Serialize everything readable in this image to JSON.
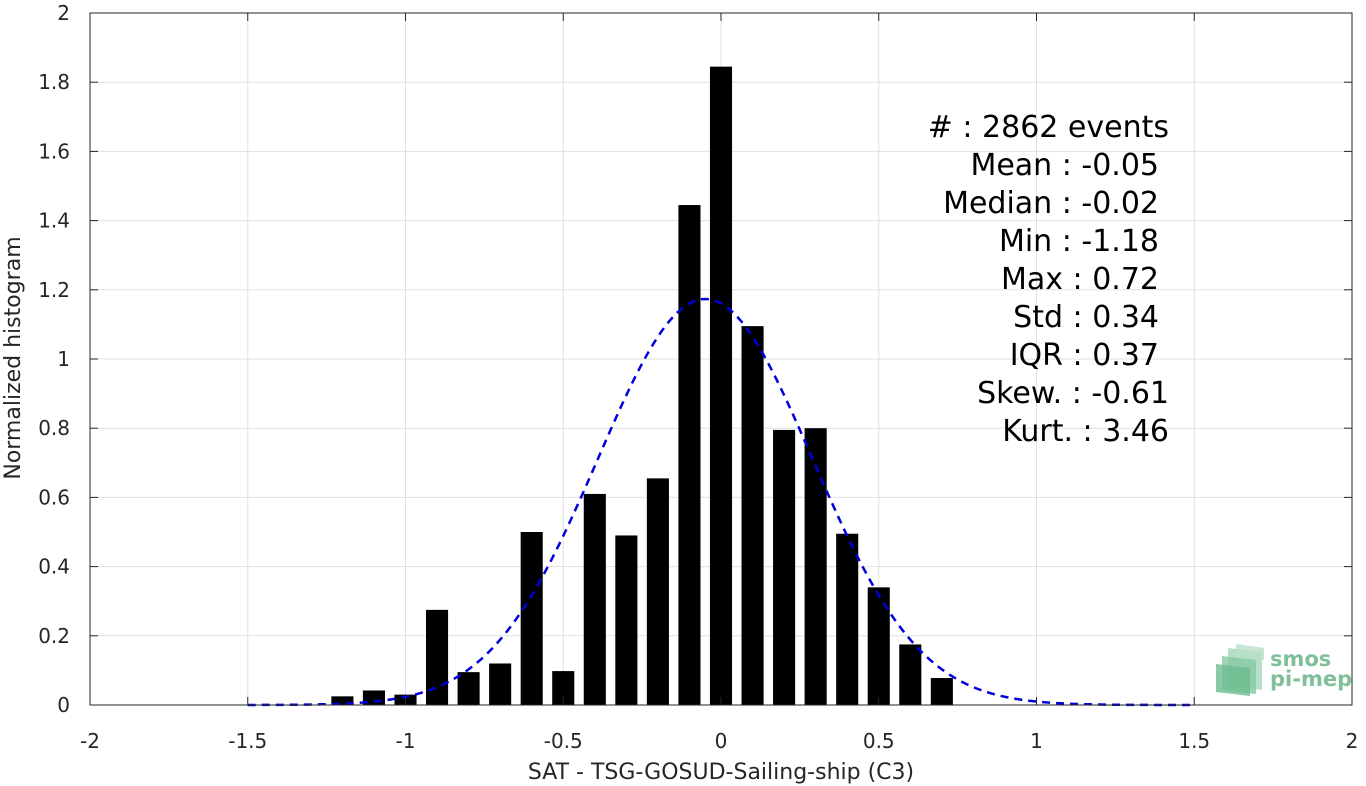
{
  "chart_data": {
    "type": "bar",
    "xlabel": "SAT - TSG-GOSUD-Sailing-ship (C3)",
    "ylabel": "Normalized histogram",
    "xlim": [
      -2,
      2
    ],
    "ylim": [
      0,
      2
    ],
    "grid": true,
    "xticks": [
      -2,
      -1.5,
      -1,
      -0.5,
      0,
      0.5,
      1,
      1.5,
      2
    ],
    "xtick_labels": [
      "-2",
      "-1.5",
      "-1",
      "-0.5",
      "0",
      "0.5",
      "1",
      "1.5",
      "2"
    ],
    "yticks": [
      0,
      0.2,
      0.4,
      0.6,
      0.8,
      1,
      1.2,
      1.4,
      1.6,
      1.8,
      2
    ],
    "ytick_labels": [
      "0",
      "0.2",
      "0.4",
      "0.6",
      "0.8",
      "1",
      "1.2",
      "1.4",
      "1.6",
      "1.8",
      "2"
    ],
    "bar_width": 0.07,
    "bars": {
      "x": [
        -1.2,
        -1.1,
        -1.0,
        -0.9,
        -0.8,
        -0.7,
        -0.6,
        -0.5,
        -0.4,
        -0.3,
        -0.2,
        -0.1,
        0.0,
        0.1,
        0.2,
        0.3,
        0.4,
        0.5,
        0.6,
        0.7
      ],
      "values": [
        0.025,
        0.042,
        0.03,
        0.275,
        0.095,
        0.12,
        0.5,
        0.098,
        0.61,
        0.49,
        0.655,
        1.445,
        1.845,
        1.095,
        0.795,
        0.8,
        0.495,
        0.34,
        0.175,
        0.078
      ],
      "color": "#000000"
    },
    "fit_curve": {
      "style": "dashed",
      "color": "#0000dd",
      "mean": -0.05,
      "std": 0.34,
      "domain": [
        -1.5,
        1.5
      ]
    },
    "annotations": [
      "#  : 2862 events",
      "Mean : -0.05",
      "Median : -0.02",
      "Min : -1.18",
      "Max : 0.72",
      "Std : 0.34",
      "IQR : 0.37",
      "Skew. : -0.61",
      "Kurt. : 3.46"
    ]
  },
  "logo": {
    "line1": "smos",
    "line2": "pi-mep",
    "color": "#7fbf9a"
  }
}
